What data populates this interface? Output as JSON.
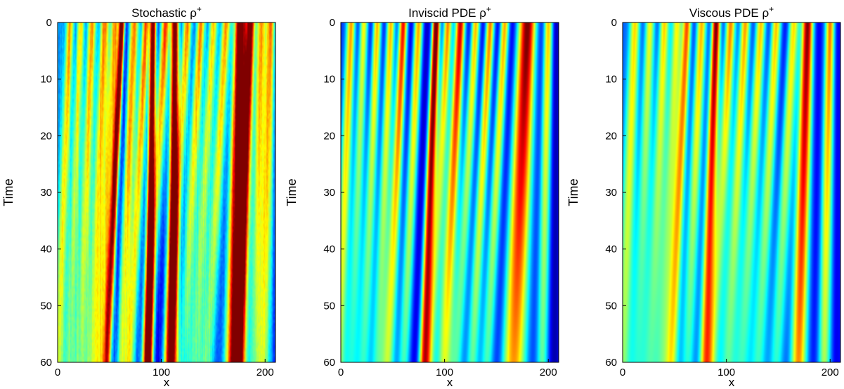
{
  "chart_data": [
    {
      "type": "heatmap",
      "title": "Stochastic ρ",
      "title_superscript": "+",
      "xlabel": "x",
      "ylabel": "Time",
      "xlim": [
        0,
        210
      ],
      "ylim": [
        0,
        60
      ],
      "y_reversed": true,
      "xticks": [
        0,
        100,
        200
      ],
      "yticks": [
        0,
        10,
        20,
        30,
        40,
        50,
        60
      ],
      "colormap": "jet",
      "stripes": [
        {
          "x0": 12,
          "slope": -0.19,
          "w": 2.5,
          "amp": 0.45
        },
        {
          "x0": 22,
          "slope": -0.19,
          "w": 2.5,
          "amp": 0.45
        },
        {
          "x0": 33,
          "slope": -0.2,
          "w": 3,
          "amp": 0.5
        },
        {
          "x0": 45,
          "slope": -0.2,
          "w": 3,
          "amp": 0.55
        },
        {
          "x0": 55,
          "slope": -0.22,
          "w": 3,
          "amp": 0.55
        },
        {
          "x0": 62,
          "slope": -0.24,
          "w": 2,
          "amp": 0.95
        },
        {
          "x0": 74,
          "slope": -0.22,
          "w": 3,
          "amp": 0.5
        },
        {
          "x0": 85,
          "slope": -0.25,
          "w": 2.5,
          "amp": 0.6
        },
        {
          "x0": 92,
          "slope": -0.08,
          "w": 2,
          "amp": 1.0
        },
        {
          "x0": 104,
          "slope": -0.3,
          "w": 3,
          "amp": 0.55
        },
        {
          "x0": 113,
          "slope": -0.05,
          "w": 2.5,
          "amp": 0.95
        },
        {
          "x0": 125,
          "slope": -0.3,
          "w": 3,
          "amp": 0.5
        },
        {
          "x0": 138,
          "slope": -0.3,
          "w": 3,
          "amp": 0.5
        },
        {
          "x0": 150,
          "slope": -0.3,
          "w": 3,
          "amp": 0.45
        },
        {
          "x0": 162,
          "slope": -0.3,
          "w": 3,
          "amp": 0.5
        },
        {
          "x0": 176,
          "slope": -0.1,
          "w": 4,
          "amp": 0.95
        },
        {
          "x0": 186,
          "slope": -0.18,
          "w": 3,
          "amp": 0.9
        },
        {
          "x0": 196,
          "slope": -0.12,
          "w": 3,
          "amp": 0.55
        },
        {
          "x0": 205,
          "slope": -0.1,
          "w": 3,
          "amp": 0.6
        }
      ],
      "background": 0.28,
      "noise": 0.07
    },
    {
      "type": "heatmap",
      "title": "Inviscid PDE ρ",
      "title_superscript": "+",
      "xlabel": "x",
      "ylabel": "Time",
      "xlim": [
        0,
        210
      ],
      "ylim": [
        0,
        60
      ],
      "y_reversed": true,
      "xticks": [
        0,
        100,
        200
      ],
      "yticks": [
        0,
        10,
        20,
        30,
        40,
        50,
        60
      ],
      "colormap": "jet",
      "stripes": [
        {
          "x0": 10,
          "slope": -0.2,
          "w": 3,
          "amp": 0.55
        },
        {
          "x0": 22,
          "slope": -0.2,
          "w": 3,
          "amp": 0.5
        },
        {
          "x0": 35,
          "slope": -0.22,
          "w": 3,
          "amp": 0.55
        },
        {
          "x0": 48,
          "slope": -0.22,
          "w": 3,
          "amp": 0.55
        },
        {
          "x0": 60,
          "slope": -0.24,
          "w": 3,
          "amp": 0.75
        },
        {
          "x0": 75,
          "slope": -0.25,
          "w": 3,
          "amp": 0.55
        },
        {
          "x0": 92,
          "slope": -0.2,
          "w": 2.5,
          "amp": 0.95
        },
        {
          "x0": 103,
          "slope": -0.28,
          "w": 3,
          "amp": 0.6
        },
        {
          "x0": 115,
          "slope": -0.26,
          "w": 3.5,
          "amp": 0.8
        },
        {
          "x0": 130,
          "slope": -0.3,
          "w": 3,
          "amp": 0.55
        },
        {
          "x0": 144,
          "slope": -0.3,
          "w": 3,
          "amp": 0.6
        },
        {
          "x0": 158,
          "slope": -0.3,
          "w": 3,
          "amp": 0.55
        },
        {
          "x0": 180,
          "slope": -0.22,
          "w": 6,
          "amp": 0.85
        },
        {
          "x0": 200,
          "slope": -0.1,
          "w": 3,
          "amp": 0.6
        }
      ],
      "background": 0.18,
      "noise": 0.0
    },
    {
      "type": "heatmap",
      "title": "Viscous PDE ρ",
      "title_superscript": "+",
      "xlabel": "x",
      "ylabel": "Time",
      "xlim": [
        0,
        210
      ],
      "ylim": [
        0,
        60
      ],
      "y_reversed": true,
      "xticks": [
        0,
        100,
        200
      ],
      "yticks": [
        0,
        10,
        20,
        30,
        40,
        50,
        60
      ],
      "colormap": "jet",
      "stripes": [
        {
          "x0": 12,
          "slope": -0.2,
          "w": 3.5,
          "amp": 0.45
        },
        {
          "x0": 26,
          "slope": -0.2,
          "w": 3.5,
          "amp": 0.45
        },
        {
          "x0": 40,
          "slope": -0.22,
          "w": 3.5,
          "amp": 0.5
        },
        {
          "x0": 52,
          "slope": -0.22,
          "w": 3.5,
          "amp": 0.5
        },
        {
          "x0": 62,
          "slope": -0.24,
          "w": 3,
          "amp": 0.7
        },
        {
          "x0": 76,
          "slope": -0.25,
          "w": 3.5,
          "amp": 0.5
        },
        {
          "x0": 90,
          "slope": -0.18,
          "w": 3,
          "amp": 0.85
        },
        {
          "x0": 104,
          "slope": -0.28,
          "w": 3.5,
          "amp": 0.55
        },
        {
          "x0": 118,
          "slope": -0.28,
          "w": 3.5,
          "amp": 0.55
        },
        {
          "x0": 133,
          "slope": -0.3,
          "w": 3.5,
          "amp": 0.5
        },
        {
          "x0": 148,
          "slope": -0.3,
          "w": 3.5,
          "amp": 0.5
        },
        {
          "x0": 165,
          "slope": -0.3,
          "w": 3.5,
          "amp": 0.45
        },
        {
          "x0": 178,
          "slope": -0.15,
          "w": 4,
          "amp": 0.85
        },
        {
          "x0": 200,
          "slope": -0.1,
          "w": 3,
          "amp": 0.55
        }
      ],
      "background": 0.22,
      "noise": 0.0
    }
  ]
}
